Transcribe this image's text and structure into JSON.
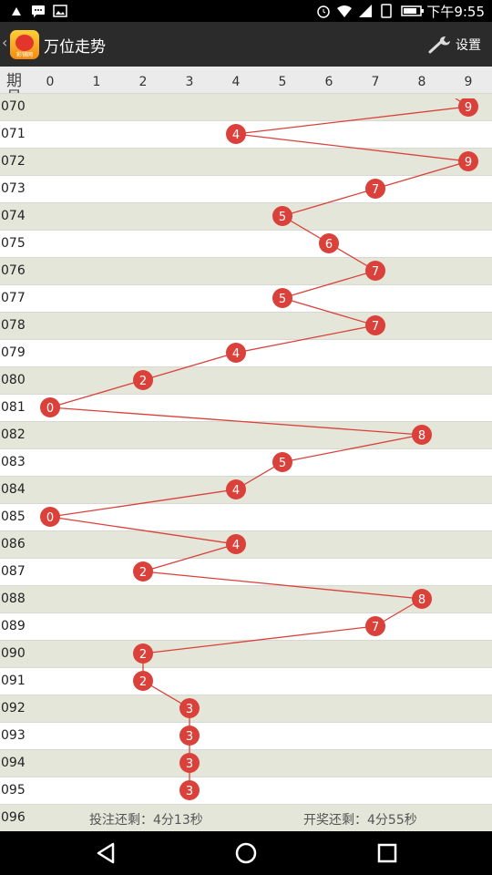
{
  "status": {
    "time": "下午9:55",
    "icons": [
      "notification-icon",
      "message-icon",
      "image-icon",
      "alarm-icon",
      "wifi-icon",
      "signal-icon",
      "sim-icon",
      "battery-icon"
    ]
  },
  "app_bar": {
    "title": "万位走势",
    "settings_label": "设置",
    "logo_tag": "彩铺网"
  },
  "header": {
    "period_label": "期号",
    "digits": [
      "0",
      "1",
      "2",
      "3",
      "4",
      "5",
      "6",
      "7",
      "8",
      "9"
    ]
  },
  "trend": {
    "rows": [
      {
        "period": "070",
        "digit": 9
      },
      {
        "period": "071",
        "digit": 4
      },
      {
        "period": "072",
        "digit": 9
      },
      {
        "period": "073",
        "digit": 7
      },
      {
        "period": "074",
        "digit": 5
      },
      {
        "period": "075",
        "digit": 6
      },
      {
        "period": "076",
        "digit": 7
      },
      {
        "period": "077",
        "digit": 5
      },
      {
        "period": "078",
        "digit": 7
      },
      {
        "period": "079",
        "digit": 4
      },
      {
        "period": "080",
        "digit": 2
      },
      {
        "period": "081",
        "digit": 0
      },
      {
        "period": "082",
        "digit": 8
      },
      {
        "period": "083",
        "digit": 5
      },
      {
        "period": "084",
        "digit": 4
      },
      {
        "period": "085",
        "digit": 0
      },
      {
        "period": "086",
        "digit": 4
      },
      {
        "period": "087",
        "digit": 2
      },
      {
        "period": "088",
        "digit": 8
      },
      {
        "period": "089",
        "digit": 7
      },
      {
        "period": "090",
        "digit": 2
      },
      {
        "period": "091",
        "digit": 2
      },
      {
        "period": "092",
        "digit": 3
      },
      {
        "period": "093",
        "digit": 3
      },
      {
        "period": "094",
        "digit": 3
      },
      {
        "period": "095",
        "digit": 3
      }
    ],
    "ball_color": "#d9413a",
    "line_color": "#d9413a"
  },
  "footer": {
    "period": "096",
    "bet_countdown": "投注还剩：4分13秒",
    "draw_countdown": "开奖还剩：4分55秒"
  },
  "nav": {
    "buttons": [
      "back-icon",
      "home-icon",
      "recents-icon"
    ]
  }
}
